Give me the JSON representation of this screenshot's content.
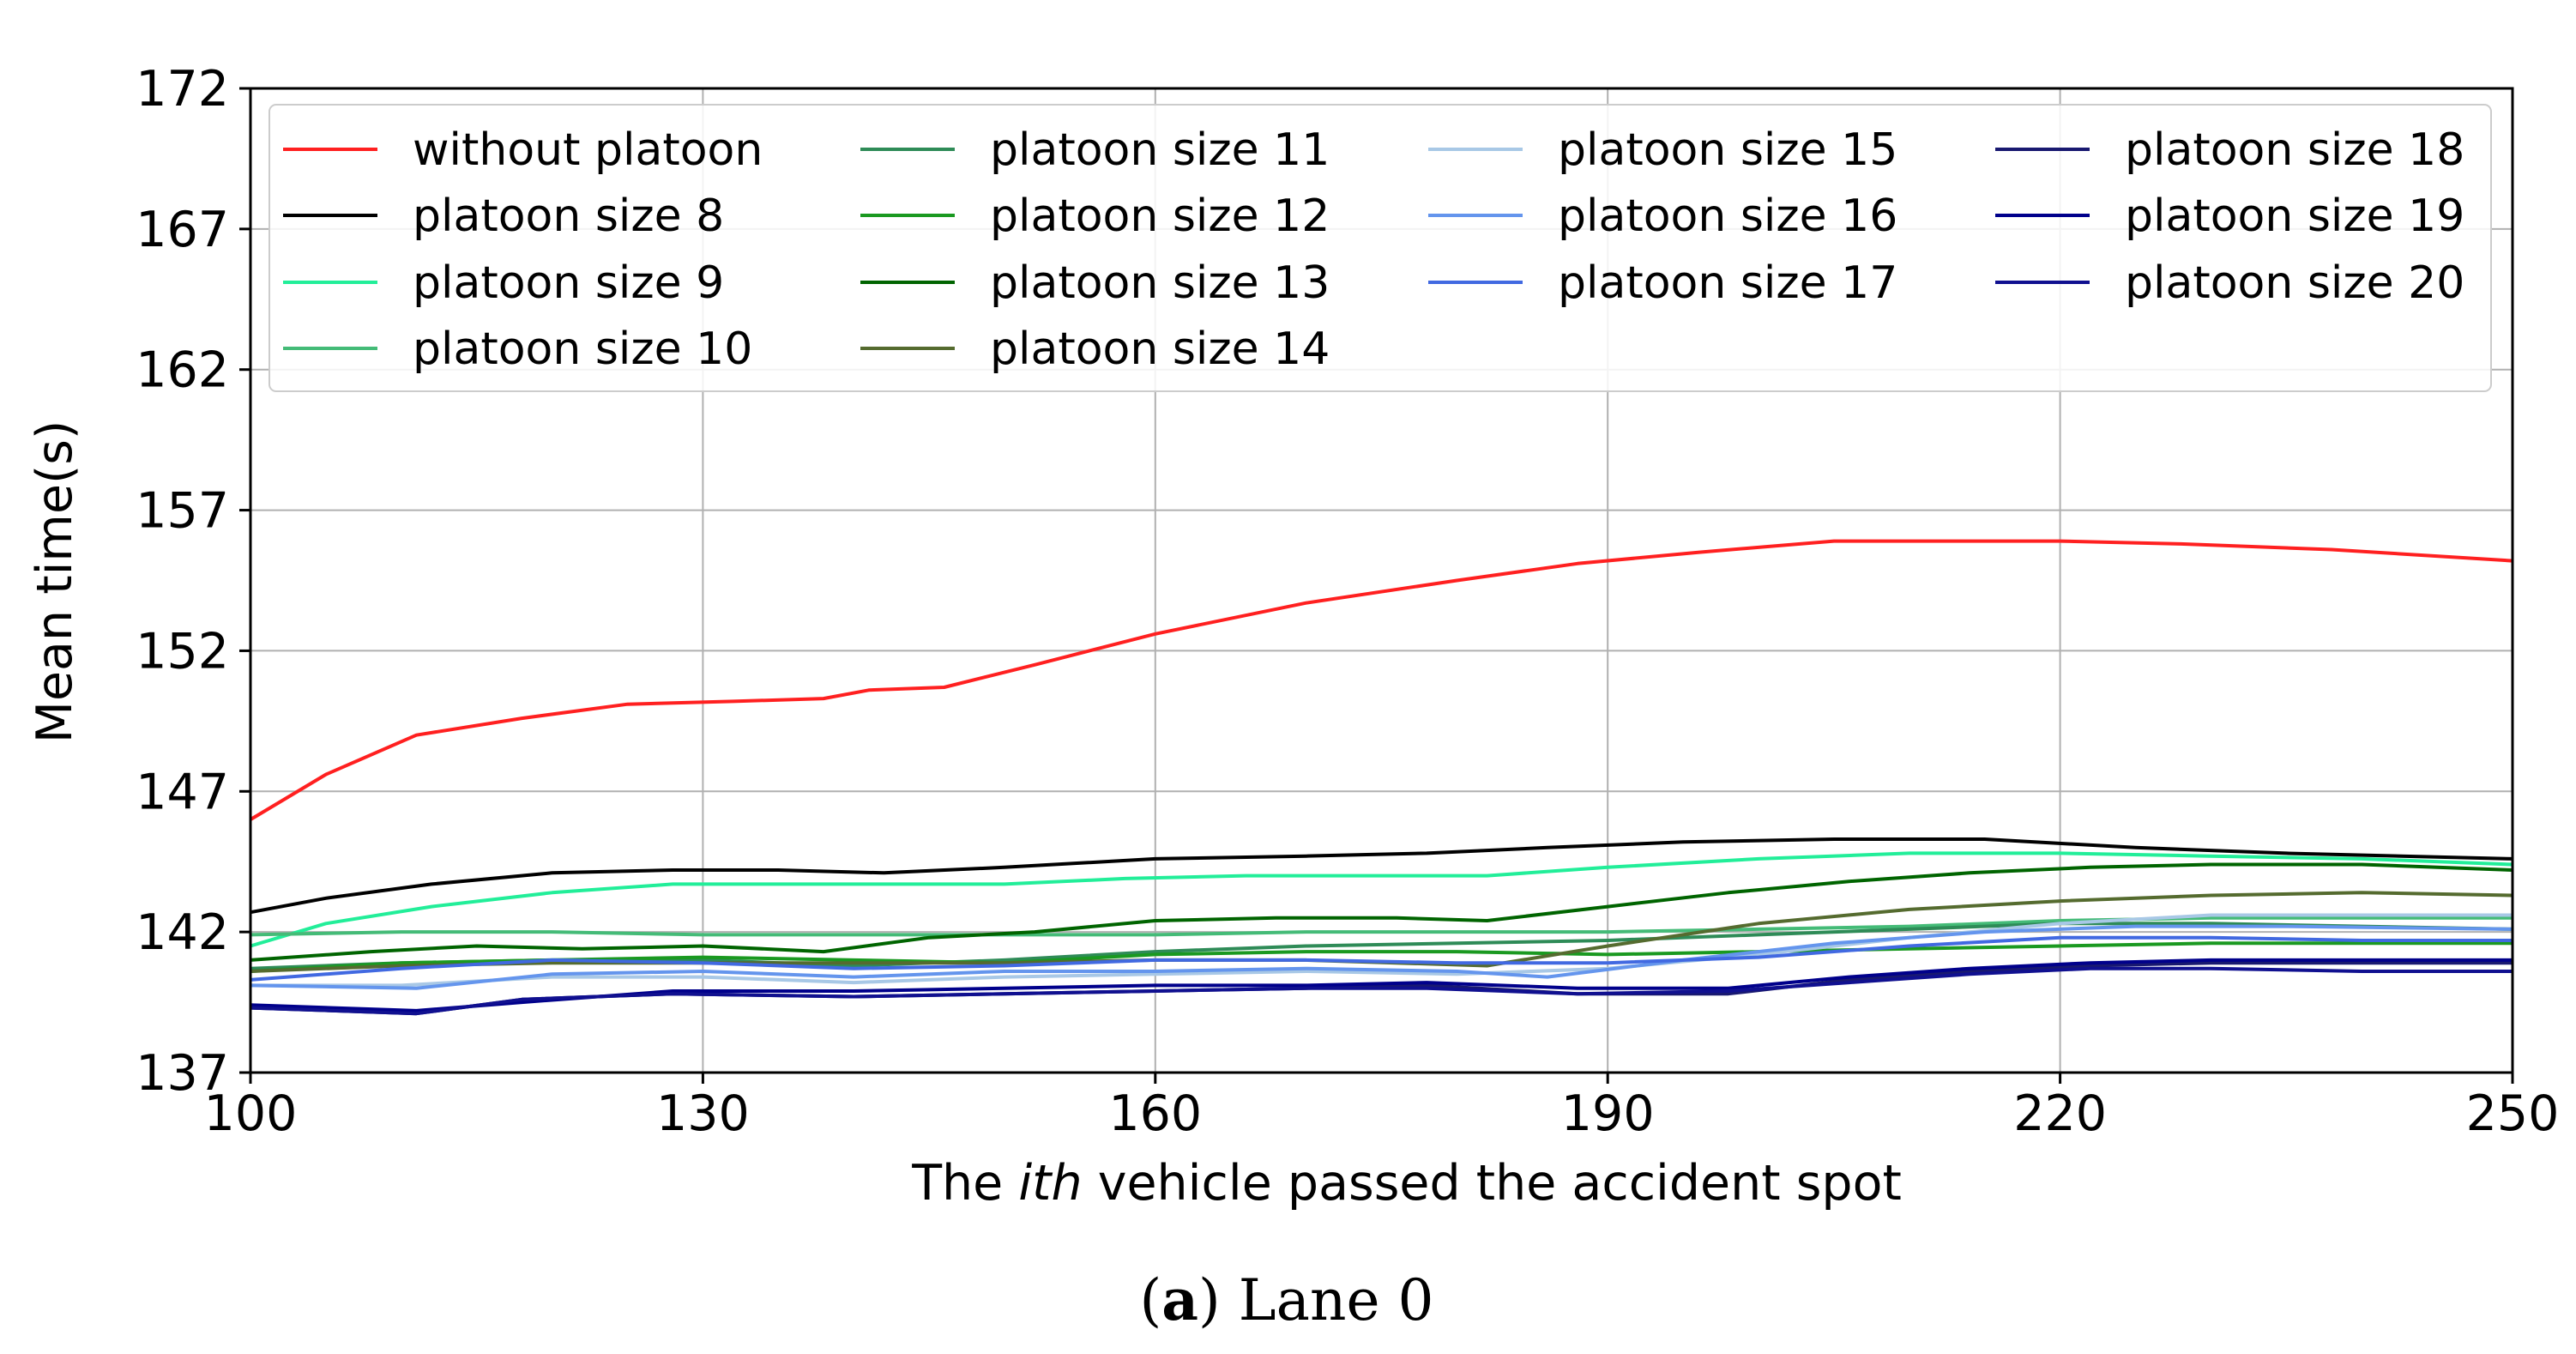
{
  "chart_data": {
    "type": "line",
    "title": "",
    "xlabel_parts": [
      "The ",
      "ith",
      " vehicle passed the accident spot"
    ],
    "ylabel": "Mean time(s)",
    "xlim": [
      100,
      250
    ],
    "ylim": [
      137,
      172
    ],
    "xticks": [
      100,
      130,
      160,
      190,
      220,
      250
    ],
    "yticks": [
      137,
      142,
      147,
      152,
      157,
      162,
      167,
      172
    ],
    "grid": true,
    "legend_position": "top",
    "legend_columns": 4,
    "caption": {
      "bold": "a",
      "open": "(",
      "close": ")",
      "rest": " Lane 0"
    },
    "series": [
      {
        "name": "without platoon",
        "color": "#ff2020",
        "x": [
          100,
          105,
          111,
          118,
          125,
          132,
          138,
          141,
          146,
          152,
          160,
          170,
          180,
          188,
          196,
          205,
          212,
          220,
          228,
          238,
          250
        ],
        "y": [
          146.0,
          147.6,
          149.0,
          149.6,
          150.1,
          150.2,
          150.3,
          150.6,
          150.7,
          151.5,
          152.6,
          153.7,
          154.5,
          155.1,
          155.5,
          155.9,
          155.9,
          155.9,
          155.8,
          155.6,
          155.2
        ]
      },
      {
        "name": "platoon size 8",
        "color": "#000000",
        "x": [
          100,
          105,
          112,
          120,
          128,
          135,
          142,
          150,
          160,
          170,
          178,
          186,
          195,
          205,
          215,
          225,
          235,
          250
        ],
        "y": [
          142.7,
          143.2,
          143.7,
          144.1,
          144.2,
          144.2,
          144.1,
          144.3,
          144.6,
          144.7,
          144.8,
          145.0,
          145.2,
          145.3,
          145.3,
          145.0,
          144.8,
          144.6
        ]
      },
      {
        "name": "platoon size 9",
        "color": "#22ee99",
        "x": [
          100,
          105,
          112,
          120,
          128,
          136,
          143,
          150,
          158,
          166,
          175,
          182,
          190,
          200,
          210,
          220,
          230,
          240,
          250
        ],
        "y": [
          141.5,
          142.3,
          142.9,
          143.4,
          143.7,
          143.7,
          143.7,
          143.7,
          143.9,
          144.0,
          144.0,
          144.0,
          144.3,
          144.6,
          144.8,
          144.8,
          144.7,
          144.6,
          144.4
        ]
      },
      {
        "name": "platoon size 10",
        "color": "#44bb77",
        "x": [
          100,
          110,
          120,
          130,
          140,
          150,
          160,
          170,
          180,
          190,
          200,
          210,
          220,
          230,
          240,
          250
        ],
        "y": [
          141.9,
          142.0,
          142.0,
          141.9,
          141.9,
          141.9,
          141.9,
          142.0,
          142.0,
          142.0,
          142.1,
          142.2,
          142.4,
          142.5,
          142.5,
          142.5
        ]
      },
      {
        "name": "platoon size 11",
        "color": "#2e8b57",
        "x": [
          100,
          110,
          120,
          130,
          140,
          150,
          160,
          170,
          180,
          190,
          200,
          210,
          220,
          230,
          240,
          250
        ],
        "y": [
          140.7,
          140.9,
          141.0,
          141.0,
          140.8,
          141.0,
          141.3,
          141.5,
          141.6,
          141.7,
          141.9,
          142.1,
          142.3,
          142.3,
          142.2,
          142.1
        ]
      },
      {
        "name": "platoon size 12",
        "color": "#1a9920",
        "x": [
          100,
          110,
          120,
          130,
          140,
          150,
          160,
          170,
          180,
          190,
          200,
          210,
          220,
          230,
          240,
          250
        ],
        "y": [
          140.6,
          140.9,
          141.0,
          141.1,
          141.0,
          140.9,
          141.2,
          141.3,
          141.3,
          141.2,
          141.3,
          141.4,
          141.5,
          141.6,
          141.6,
          141.6
        ]
      },
      {
        "name": "platoon size 13",
        "color": "#006400",
        "x": [
          100,
          108,
          115,
          122,
          130,
          138,
          145,
          152,
          160,
          168,
          176,
          182,
          190,
          198,
          206,
          214,
          222,
          230,
          240,
          250
        ],
        "y": [
          141.0,
          141.3,
          141.5,
          141.4,
          141.5,
          141.3,
          141.8,
          142.0,
          142.4,
          142.5,
          142.5,
          142.4,
          142.9,
          143.4,
          143.8,
          144.1,
          144.3,
          144.4,
          144.4,
          144.2
        ]
      },
      {
        "name": "platoon size 14",
        "color": "#556b2f",
        "x": [
          100,
          110,
          120,
          130,
          140,
          150,
          160,
          170,
          182,
          190,
          200,
          210,
          220,
          230,
          240,
          250
        ],
        "y": [
          140.6,
          140.8,
          140.9,
          140.9,
          140.9,
          140.9,
          141.0,
          141.0,
          140.8,
          141.5,
          142.3,
          142.8,
          143.1,
          143.3,
          143.4,
          143.3
        ]
      },
      {
        "name": "platoon size 15",
        "color": "#a8c8e6",
        "x": [
          100,
          110,
          120,
          130,
          140,
          150,
          160,
          170,
          180,
          190,
          200,
          210,
          220,
          230,
          240,
          250
        ],
        "y": [
          140.1,
          140.1,
          140.4,
          140.4,
          140.2,
          140.4,
          140.5,
          140.6,
          140.5,
          140.7,
          141.2,
          141.8,
          142.3,
          142.6,
          142.6,
          142.6
        ]
      },
      {
        "name": "platoon size 16",
        "color": "#6495ed",
        "x": [
          100,
          111,
          120,
          130,
          140,
          150,
          160,
          170,
          180,
          186,
          195,
          205,
          215,
          225,
          235,
          250
        ],
        "y": [
          140.1,
          140.0,
          140.5,
          140.6,
          140.4,
          140.6,
          140.6,
          140.7,
          140.6,
          140.4,
          141.0,
          141.6,
          142.0,
          142.2,
          142.2,
          142.1
        ]
      },
      {
        "name": "platoon size 17",
        "color": "#4169e1",
        "x": [
          100,
          110,
          120,
          130,
          140,
          150,
          160,
          170,
          180,
          190,
          200,
          210,
          220,
          230,
          240,
          250
        ],
        "y": [
          140.3,
          140.7,
          141.0,
          140.9,
          140.7,
          140.8,
          141.0,
          141.0,
          140.9,
          140.9,
          141.1,
          141.5,
          141.8,
          141.8,
          141.7,
          141.7
        ]
      },
      {
        "name": "platoon size 18",
        "color": "#191970",
        "x": [
          100,
          111,
          118,
          128,
          140,
          150,
          160,
          170,
          178,
          188,
          198,
          206,
          214,
          222,
          230,
          240,
          250
        ],
        "y": [
          139.3,
          139.1,
          139.6,
          139.8,
          139.7,
          139.8,
          139.9,
          140.0,
          140.1,
          139.8,
          139.8,
          140.3,
          140.6,
          140.8,
          140.9,
          140.9,
          140.9
        ]
      },
      {
        "name": "platoon size 19",
        "color": "#00008b",
        "x": [
          100,
          111,
          118,
          128,
          140,
          150,
          160,
          170,
          178,
          188,
          198,
          206,
          214,
          222,
          230,
          240,
          250
        ],
        "y": [
          139.4,
          139.2,
          139.5,
          139.9,
          139.9,
          140.0,
          140.1,
          140.1,
          140.2,
          140.0,
          140.0,
          140.4,
          140.7,
          140.9,
          141.0,
          141.0,
          141.0
        ]
      },
      {
        "name": "platoon size 20",
        "color": "#101090",
        "x": [
          100,
          111,
          118,
          128,
          140,
          150,
          160,
          170,
          178,
          188,
          198,
          206,
          214,
          222,
          230,
          240,
          250
        ],
        "y": [
          139.3,
          139.1,
          139.6,
          139.8,
          139.7,
          139.8,
          139.9,
          140.0,
          140.0,
          139.8,
          139.9,
          140.2,
          140.5,
          140.7,
          140.7,
          140.6,
          140.6
        ]
      }
    ]
  }
}
